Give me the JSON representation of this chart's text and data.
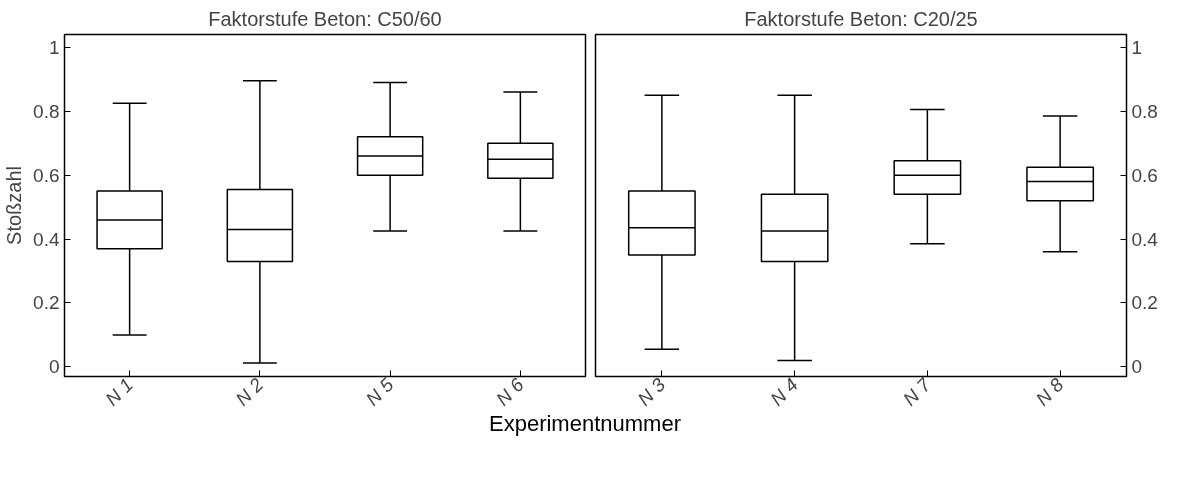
{
  "chart_data": [
    {
      "type": "box",
      "title": "Faktorstufe Beton: C50/60",
      "ylabel": "Stoßzahl",
      "xlabel": "Experimentnummer",
      "categories": [
        "N 1",
        "N 2",
        "N 5",
        "N 6"
      ],
      "boxes": [
        {
          "low": 0.1,
          "q1": 0.37,
          "median": 0.46,
          "q3": 0.55,
          "high": 0.825
        },
        {
          "low": 0.012,
          "q1": 0.33,
          "median": 0.43,
          "q3": 0.555,
          "high": 0.895
        },
        {
          "low": 0.425,
          "q1": 0.6,
          "median": 0.66,
          "q3": 0.72,
          "high": 0.89
        },
        {
          "low": 0.425,
          "q1": 0.59,
          "median": 0.65,
          "q3": 0.7,
          "high": 0.86
        }
      ],
      "ylim": [
        -0.03,
        1.04
      ],
      "yticks": [
        0,
        0.2,
        0.4,
        0.6,
        0.8,
        1
      ],
      "grid": false
    },
    {
      "type": "box",
      "title": "Faktorstufe Beton: C20/25",
      "categories": [
        "N 3",
        "N 4",
        "N 7",
        "N 8"
      ],
      "boxes": [
        {
          "low": 0.055,
          "q1": 0.35,
          "median": 0.435,
          "q3": 0.55,
          "high": 0.85
        },
        {
          "low": 0.02,
          "q1": 0.33,
          "median": 0.425,
          "q3": 0.54,
          "high": 0.85
        },
        {
          "low": 0.385,
          "q1": 0.54,
          "median": 0.6,
          "q3": 0.645,
          "high": 0.805
        },
        {
          "low": 0.36,
          "q1": 0.52,
          "median": 0.58,
          "q3": 0.625,
          "high": 0.785
        }
      ],
      "ylim": [
        -0.03,
        1.04
      ],
      "yticks": [
        0,
        0.2,
        0.4,
        0.6,
        0.8,
        1
      ],
      "grid": false
    }
  ]
}
